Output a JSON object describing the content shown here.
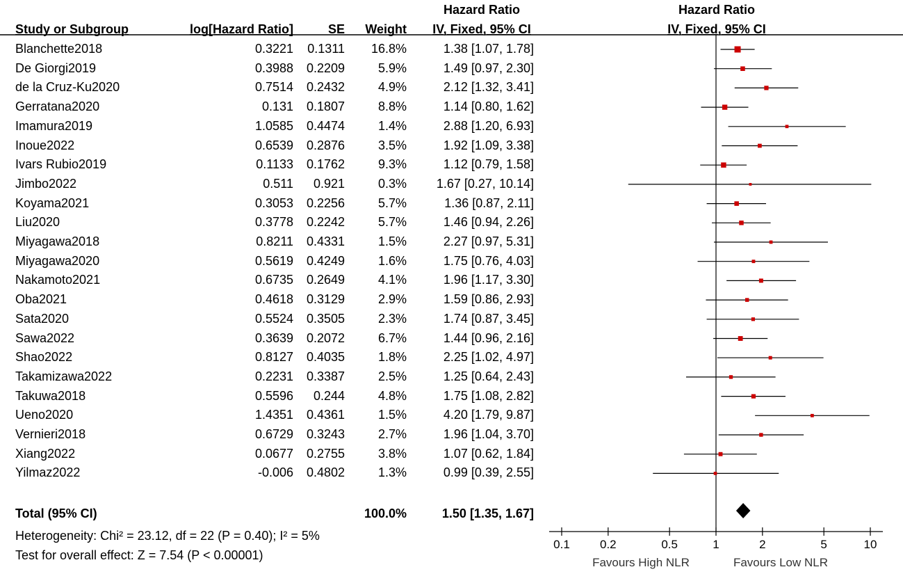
{
  "headers": {
    "study": "Study or Subgroup",
    "loghr": "log[Hazard Ratio]",
    "se": "SE",
    "weight": "Weight",
    "hr_top": "Hazard Ratio",
    "hr_sub": "IV, Fixed, 95% CI",
    "plot_top": "Hazard Ratio",
    "plot_sub": "IV, Fixed, 95% CI"
  },
  "total": {
    "label": "Total (95% CI)",
    "weight": "100.0%",
    "hr": "1.50 [1.35, 1.67]"
  },
  "footer": {
    "heterogeneity": "Heterogeneity: Chi² = 23.12, df = 22 (P = 0.40); I² = 5%",
    "overall": "Test for overall effect: Z = 7.54 (P < 0.00001)"
  },
  "chart_data": {
    "type": "scatter",
    "subtype": "forest",
    "x_scale": "log",
    "xlim": [
      0.1,
      10
    ],
    "ticks": [
      "0.1",
      "0.2",
      "0.5",
      "1",
      "2",
      "5",
      "10"
    ],
    "tick_values": [
      0.1,
      0.2,
      0.5,
      1,
      2,
      5,
      10
    ],
    "favours_left": "Favours High NLR",
    "favours_right": "Favours Low NLR",
    "marker_color": "#cc0000",
    "diamond_color": "#000000",
    "studies": [
      {
        "name": "Blanchette2018",
        "loghr": "0.3221",
        "se": "0.1311",
        "weight": "16.8%",
        "ci": "1.38 [1.07, 1.78]",
        "hr": 1.38,
        "lo": 1.07,
        "hi": 1.78,
        "w": 16.8
      },
      {
        "name": "De Giorgi2019",
        "loghr": "0.3988",
        "se": "0.2209",
        "weight": "5.9%",
        "ci": "1.49 [0.97, 2.30]",
        "hr": 1.49,
        "lo": 0.97,
        "hi": 2.3,
        "w": 5.9
      },
      {
        "name": "de la Cruz-Ku2020",
        "loghr": "0.7514",
        "se": "0.2432",
        "weight": "4.9%",
        "ci": "2.12 [1.32, 3.41]",
        "hr": 2.12,
        "lo": 1.32,
        "hi": 3.41,
        "w": 4.9
      },
      {
        "name": "Gerratana2020",
        "loghr": "0.131",
        "se": "0.1807",
        "weight": "8.8%",
        "ci": "1.14 [0.80, 1.62]",
        "hr": 1.14,
        "lo": 0.8,
        "hi": 1.62,
        "w": 8.8
      },
      {
        "name": "Imamura2019",
        "loghr": "1.0585",
        "se": "0.4474",
        "weight": "1.4%",
        "ci": "2.88 [1.20, 6.93]",
        "hr": 2.88,
        "lo": 1.2,
        "hi": 6.93,
        "w": 1.4
      },
      {
        "name": "Inoue2022",
        "loghr": "0.6539",
        "se": "0.2876",
        "weight": "3.5%",
        "ci": "1.92 [1.09, 3.38]",
        "hr": 1.92,
        "lo": 1.09,
        "hi": 3.38,
        "w": 3.5
      },
      {
        "name": "Ivars Rubio2019",
        "loghr": "0.1133",
        "se": "0.1762",
        "weight": "9.3%",
        "ci": "1.12 [0.79, 1.58]",
        "hr": 1.12,
        "lo": 0.79,
        "hi": 1.58,
        "w": 9.3
      },
      {
        "name": "Jimbo2022",
        "loghr": "0.511",
        "se": "0.921",
        "weight": "0.3%",
        "ci": "1.67 [0.27, 10.14]",
        "hr": 1.67,
        "lo": 0.27,
        "hi": 10.14,
        "w": 0.3
      },
      {
        "name": "Koyama2021",
        "loghr": "0.3053",
        "se": "0.2256",
        "weight": "5.7%",
        "ci": "1.36 [0.87, 2.11]",
        "hr": 1.36,
        "lo": 0.87,
        "hi": 2.11,
        "w": 5.7
      },
      {
        "name": "Liu2020",
        "loghr": "0.3778",
        "se": "0.2242",
        "weight": "5.7%",
        "ci": "1.46 [0.94, 2.26]",
        "hr": 1.46,
        "lo": 0.94,
        "hi": 2.26,
        "w": 5.7
      },
      {
        "name": "Miyagawa2018",
        "loghr": "0.8211",
        "se": "0.4331",
        "weight": "1.5%",
        "ci": "2.27 [0.97, 5.31]",
        "hr": 2.27,
        "lo": 0.97,
        "hi": 5.31,
        "w": 1.5
      },
      {
        "name": "Miyagawa2020",
        "loghr": "0.5619",
        "se": "0.4249",
        "weight": "1.6%",
        "ci": "1.75 [0.76, 4.03]",
        "hr": 1.75,
        "lo": 0.76,
        "hi": 4.03,
        "w": 1.6
      },
      {
        "name": "Nakamoto2021",
        "loghr": "0.6735",
        "se": "0.2649",
        "weight": "4.1%",
        "ci": "1.96 [1.17, 3.30]",
        "hr": 1.96,
        "lo": 1.17,
        "hi": 3.3,
        "w": 4.1
      },
      {
        "name": "Oba2021",
        "loghr": "0.4618",
        "se": "0.3129",
        "weight": "2.9%",
        "ci": "1.59 [0.86, 2.93]",
        "hr": 1.59,
        "lo": 0.86,
        "hi": 2.93,
        "w": 2.9
      },
      {
        "name": "Sata2020",
        "loghr": "0.5524",
        "se": "0.3505",
        "weight": "2.3%",
        "ci": "1.74 [0.87, 3.45]",
        "hr": 1.74,
        "lo": 0.87,
        "hi": 3.45,
        "w": 2.3
      },
      {
        "name": "Sawa2022",
        "loghr": "0.3639",
        "se": "0.2072",
        "weight": "6.7%",
        "ci": "1.44 [0.96, 2.16]",
        "hr": 1.44,
        "lo": 0.96,
        "hi": 2.16,
        "w": 6.7
      },
      {
        "name": "Shao2022",
        "loghr": "0.8127",
        "se": "0.4035",
        "weight": "1.8%",
        "ci": "2.25 [1.02, 4.97]",
        "hr": 2.25,
        "lo": 1.02,
        "hi": 4.97,
        "w": 1.8
      },
      {
        "name": "Takamizawa2022",
        "loghr": "0.2231",
        "se": "0.3387",
        "weight": "2.5%",
        "ci": "1.25 [0.64, 2.43]",
        "hr": 1.25,
        "lo": 0.64,
        "hi": 2.43,
        "w": 2.5
      },
      {
        "name": "Takuwa2018",
        "loghr": "0.5596",
        "se": "0.244",
        "weight": "4.8%",
        "ci": "1.75 [1.08, 2.82]",
        "hr": 1.75,
        "lo": 1.08,
        "hi": 2.82,
        "w": 4.8
      },
      {
        "name": "Ueno2020",
        "loghr": "1.4351",
        "se": "0.4361",
        "weight": "1.5%",
        "ci": "4.20 [1.79, 9.87]",
        "hr": 4.2,
        "lo": 1.79,
        "hi": 9.87,
        "w": 1.5
      },
      {
        "name": "Vernieri2018",
        "loghr": "0.6729",
        "se": "0.3243",
        "weight": "2.7%",
        "ci": "1.96 [1.04, 3.70]",
        "hr": 1.96,
        "lo": 1.04,
        "hi": 3.7,
        "w": 2.7
      },
      {
        "name": "Xiang2022",
        "loghr": "0.0677",
        "se": "0.2755",
        "weight": "3.8%",
        "ci": "1.07 [0.62, 1.84]",
        "hr": 1.07,
        "lo": 0.62,
        "hi": 1.84,
        "w": 3.8
      },
      {
        "name": "Yilmaz2022",
        "loghr": "-0.006",
        "se": "0.4802",
        "weight": "1.3%",
        "ci": "0.99 [0.39, 2.55]",
        "hr": 0.99,
        "lo": 0.39,
        "hi": 2.55,
        "w": 1.3
      }
    ],
    "pooled": {
      "hr": 1.5,
      "lo": 1.35,
      "hi": 1.67
    }
  }
}
